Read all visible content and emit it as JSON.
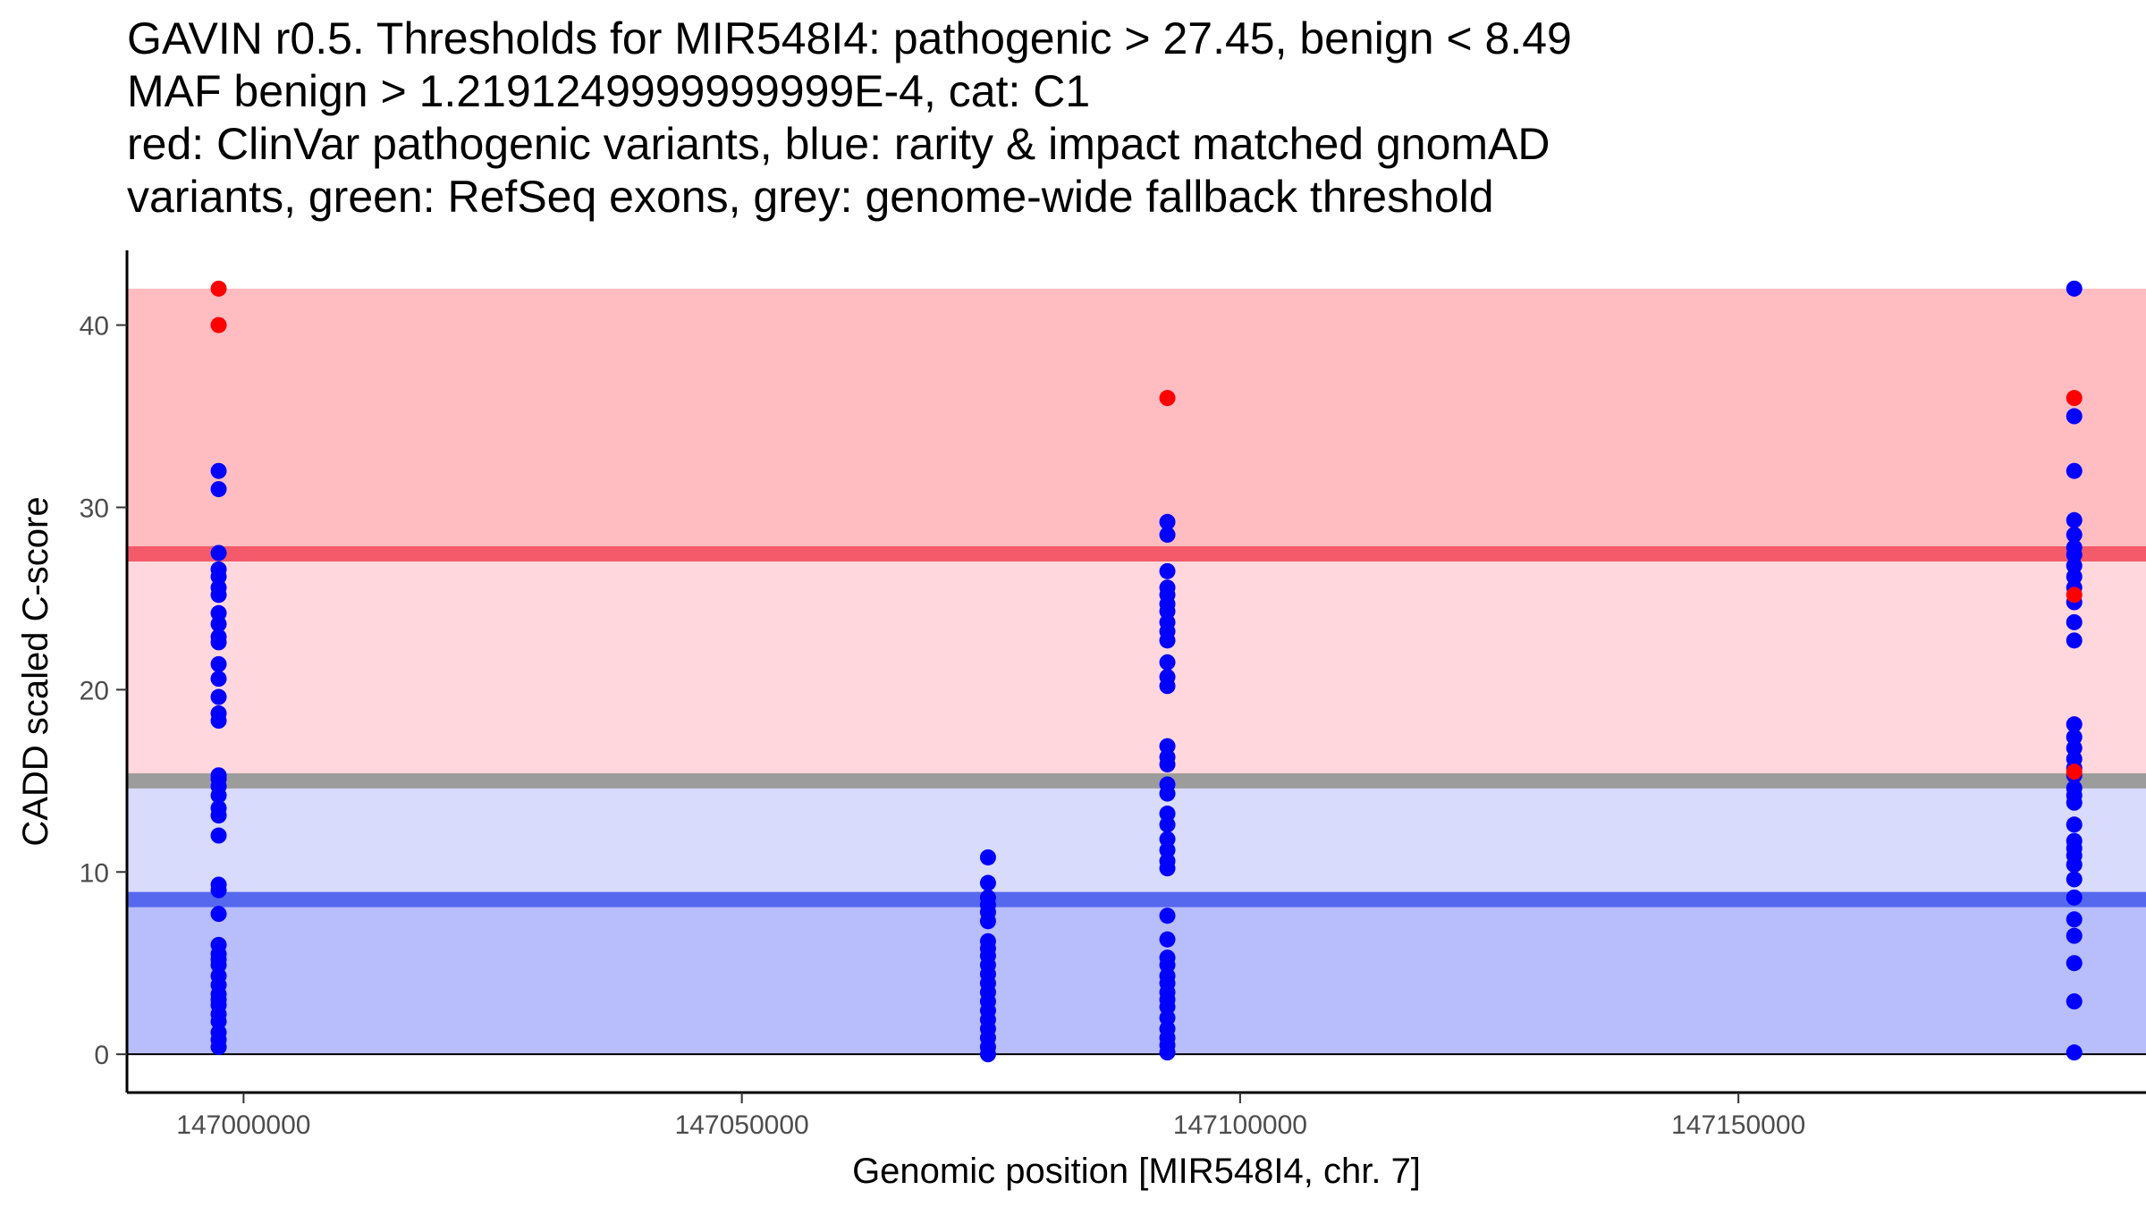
{
  "chart_data": {
    "type": "scatter",
    "title_lines": [
      "GAVIN r0.5. Thresholds for MIR548I4: pathogenic > 27.45, benign < 8.49",
      "MAF benign > 1.2191249999999999E-4, cat: C1",
      "red: ClinVar pathogenic variants, blue: rarity & impact matched gnomAD",
      "variants, green: RefSeq exons, grey: genome-wide fallback threshold"
    ],
    "xlabel": "Genomic position [MIR548I4, chr. 7]",
    "ylabel": "CADD scaled C-score",
    "xlim": [
      146988300,
      147190900
    ],
    "ylim": [
      -2.1,
      44.1
    ],
    "xticks": [
      147000000,
      147050000,
      147100000,
      147150000
    ],
    "yticks": [
      0,
      10,
      20,
      30,
      40
    ],
    "thresholds": {
      "pathogenic": 27.45,
      "benign": 8.49,
      "fallback": 15.0,
      "score_max": 42,
      "fallback_benign_top": 14.6
    },
    "colors": {
      "pathogenic_zone": "#ffbdc2",
      "uncertain_patho_zone": "#ffd7dc",
      "uncertain_benign_zone": "#d8dbfc",
      "benign_zone": "#b8bdfb",
      "pathogenic_line": "#f45a6a",
      "benign_line": "#5668ee",
      "fallback_line": "#9c9c9c",
      "gnomad_point": "#0000ff",
      "clinvar_point": "#ff0000"
    },
    "series": [
      {
        "name": "gnomAD (rarity & impact matched)",
        "color": "#0000ff",
        "groups": [
          {
            "x": 146997500,
            "y": [
              0.4,
              0.8,
              1.2,
              1.8,
              2.2,
              2.7,
              3.0,
              3.3,
              3.8,
              4.3,
              4.9,
              5.2,
              5.5,
              6.0,
              7.7,
              9.0,
              9.3,
              12.0,
              13.1,
              13.5,
              14.2,
              14.7,
              15.1,
              15.3,
              18.3,
              18.7,
              19.6,
              20.6,
              21.4,
              22.6,
              22.9,
              23.6,
              24.2,
              25.2,
              25.6,
              26.2,
              26.6,
              27.5,
              31.0,
              32.0
            ]
          },
          {
            "x": 147074700,
            "y": [
              0.0,
              0.4,
              0.9,
              1.4,
              1.9,
              2.4,
              2.9,
              3.4,
              3.9,
              4.4,
              4.9,
              5.4,
              5.8,
              6.2,
              7.3,
              7.8,
              8.2,
              8.6,
              9.4,
              10.8
            ]
          },
          {
            "x": 147092700,
            "y": [
              0.1,
              0.5,
              0.9,
              1.4,
              2.0,
              2.6,
              3.0,
              3.4,
              3.9,
              4.3,
              4.9,
              5.3,
              6.3,
              7.6,
              10.2,
              10.6,
              11.2,
              11.8,
              12.6,
              13.2,
              14.3,
              14.8,
              15.9,
              16.3,
              16.9,
              20.2,
              20.7,
              21.5,
              22.7,
              23.2,
              23.7,
              24.3,
              24.7,
              25.2,
              25.6,
              26.5,
              28.5,
              29.2
            ]
          },
          {
            "x": 147183700,
            "y": [
              0.1,
              2.9,
              5.0,
              6.5,
              7.4,
              8.6,
              9.6,
              10.4,
              10.9,
              11.3,
              11.7,
              12.6,
              13.8,
              14.2,
              14.6,
              15.3,
              15.7,
              16.2,
              16.8,
              17.4,
              18.1,
              22.7,
              23.7,
              24.8,
              25.6,
              26.2,
              26.8,
              27.4,
              27.8,
              28.5,
              29.3,
              32.0,
              35.0,
              42.0
            ]
          }
        ]
      },
      {
        "name": "ClinVar pathogenic",
        "color": "#ff0000",
        "groups": [
          {
            "x": 146997500,
            "y": [
              40.0,
              42.0
            ]
          },
          {
            "x": 147092700,
            "y": [
              36.0
            ]
          },
          {
            "x": 147183700,
            "y": [
              15.5,
              25.2,
              36.0
            ]
          }
        ]
      }
    ]
  }
}
